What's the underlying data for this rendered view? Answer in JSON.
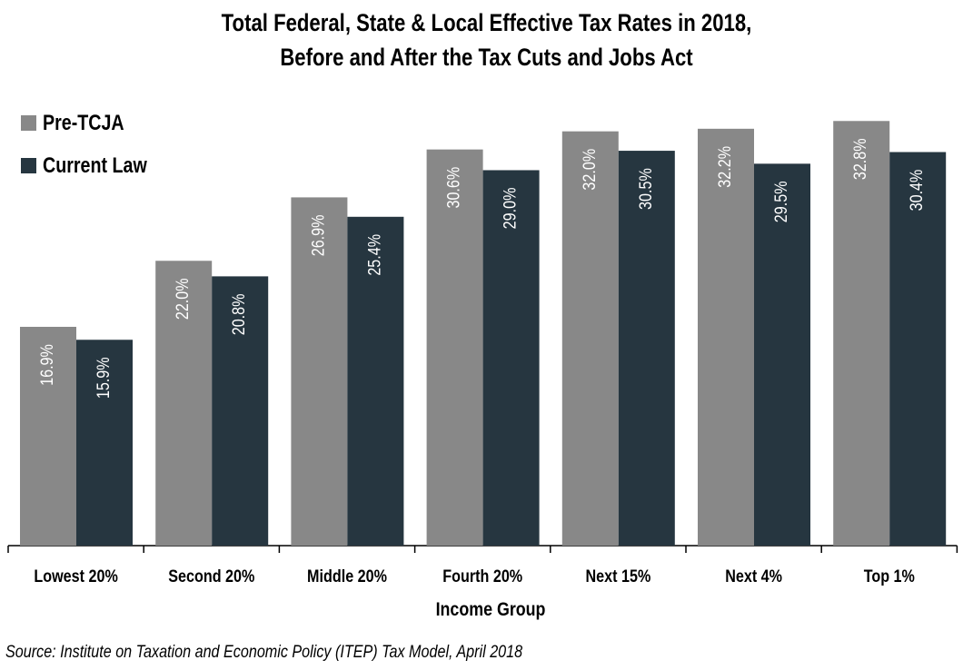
{
  "chart_data": {
    "type": "bar",
    "title": "Total Federal, State & Local Effective Tax Rates in 2018,",
    "subtitle": "Before and After the Tax Cuts and Jobs Act",
    "xlabel": "Income Group",
    "ylabel": "",
    "categories": [
      "Lowest 20%",
      "Second 20%",
      "Middle 20%",
      "Fourth 20%",
      "Next 15%",
      "Next 4%",
      "Top 1%"
    ],
    "series": [
      {
        "name": "Pre-TCJA",
        "color": "#888888",
        "values": [
          16.9,
          22.0,
          26.9,
          30.6,
          32.0,
          32.2,
          32.8
        ],
        "labels": [
          "16.9%",
          "22.0%",
          "26.9%",
          "30.6%",
          "32.0%",
          "32.2%",
          "32.8%"
        ]
      },
      {
        "name": "Current Law",
        "color": "#263640",
        "values": [
          15.9,
          20.8,
          25.4,
          29.0,
          30.5,
          29.5,
          30.4
        ],
        "labels": [
          "15.9%",
          "20.8%",
          "25.4%",
          "29.0%",
          "30.5%",
          "29.5%",
          "30.4%"
        ]
      }
    ],
    "ylim": [
      0,
      33
    ],
    "grid": false,
    "legend_placement": "top-left",
    "source": "Source: Institute on Taxation and Economic Policy (ITEP) Tax Model, April 2018"
  }
}
